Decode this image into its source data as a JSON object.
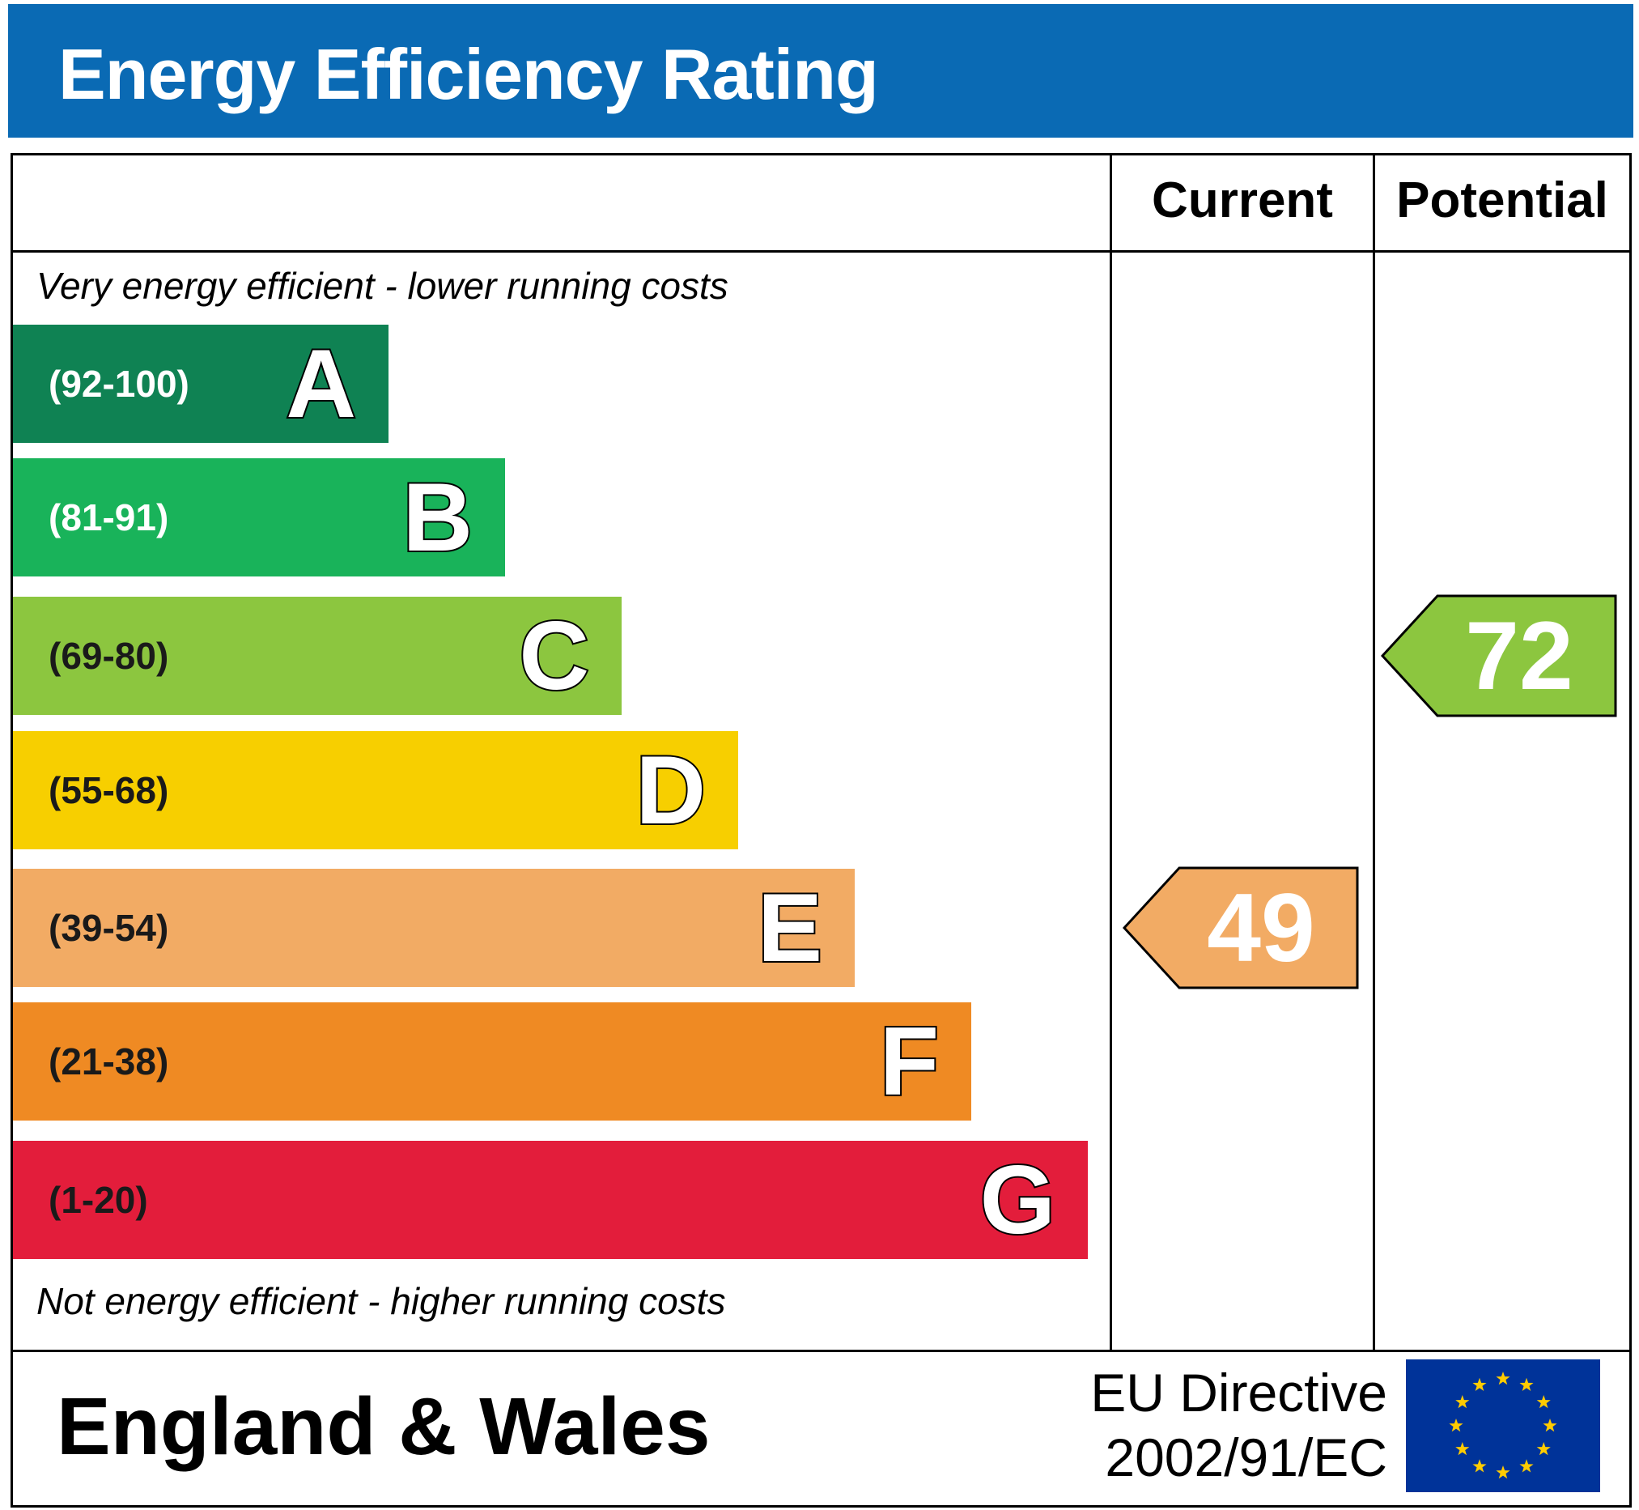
{
  "header": {
    "title": "Energy Efficiency Rating"
  },
  "columns": {
    "current": "Current",
    "potential": "Potential"
  },
  "captions": {
    "top": "Very energy efficient - lower running costs",
    "bottom": "Not energy efficient - higher running costs"
  },
  "chart_data": {
    "type": "bar",
    "title": "Energy Efficiency Rating",
    "bands": [
      {
        "letter": "A",
        "range": "(92-100)",
        "min": 92,
        "max": 100,
        "color": "#0f8253"
      },
      {
        "letter": "B",
        "range": "(81-91)",
        "min": 81,
        "max": 91,
        "color": "#19b35a"
      },
      {
        "letter": "C",
        "range": "(69-80)",
        "min": 69,
        "max": 80,
        "color": "#8cc63f"
      },
      {
        "letter": "D",
        "range": "(55-68)",
        "min": 55,
        "max": 68,
        "color": "#f7cf00"
      },
      {
        "letter": "E",
        "range": "(39-54)",
        "min": 39,
        "max": 54,
        "color": "#f2ab64"
      },
      {
        "letter": "F",
        "range": "(21-38)",
        "min": 21,
        "max": 38,
        "color": "#ef8a23"
      },
      {
        "letter": "G",
        "range": "(1-20)",
        "min": 1,
        "max": 20,
        "color": "#e31d3b"
      }
    ],
    "current": {
      "value": "49",
      "band": "E",
      "color": "#f2ab64"
    },
    "potential": {
      "value": "72",
      "band": "C",
      "color": "#8cc63f"
    }
  },
  "footer": {
    "region": "England & Wales",
    "directive_line1": "EU Directive",
    "directive_line2": "2002/91/EC",
    "flag": {
      "icon": "eu-flag-icon",
      "background": "#003399",
      "star_color": "#ffcc00"
    }
  }
}
